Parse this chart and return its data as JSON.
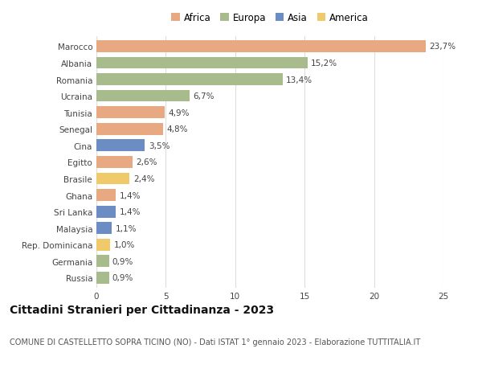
{
  "countries": [
    "Marocco",
    "Albania",
    "Romania",
    "Ucraina",
    "Tunisia",
    "Senegal",
    "Cina",
    "Egitto",
    "Brasile",
    "Ghana",
    "Sri Lanka",
    "Malaysia",
    "Rep. Dominicana",
    "Germania",
    "Russia"
  ],
  "values": [
    23.7,
    15.2,
    13.4,
    6.7,
    4.9,
    4.8,
    3.5,
    2.6,
    2.4,
    1.4,
    1.4,
    1.1,
    1.0,
    0.9,
    0.9
  ],
  "labels": [
    "23,7%",
    "15,2%",
    "13,4%",
    "6,7%",
    "4,9%",
    "4,8%",
    "3,5%",
    "2,6%",
    "2,4%",
    "1,4%",
    "1,4%",
    "1,1%",
    "1,0%",
    "0,9%",
    "0,9%"
  ],
  "continents": [
    "Africa",
    "Europa",
    "Europa",
    "Europa",
    "Africa",
    "Africa",
    "Asia",
    "Africa",
    "America",
    "Africa",
    "Asia",
    "Asia",
    "America",
    "Europa",
    "Europa"
  ],
  "continent_colors": {
    "Africa": "#E8A882",
    "Europa": "#A8BB8C",
    "Asia": "#6B8DC4",
    "America": "#F0C96A"
  },
  "legend_order": [
    "Africa",
    "Europa",
    "Asia",
    "America"
  ],
  "title": "Cittadini Stranieri per Cittadinanza - 2023",
  "subtitle": "COMUNE DI CASTELLETTO SOPRA TICINO (NO) - Dati ISTAT 1° gennaio 2023 - Elaborazione TUTTITALIA.IT",
  "xlim": [
    0,
    25
  ],
  "xticks": [
    0,
    5,
    10,
    15,
    20,
    25
  ],
  "background_color": "#ffffff",
  "grid_color": "#dddddd",
  "bar_height": 0.72,
  "title_fontsize": 10,
  "subtitle_fontsize": 7,
  "label_fontsize": 7.5,
  "tick_fontsize": 7.5,
  "legend_fontsize": 8.5
}
